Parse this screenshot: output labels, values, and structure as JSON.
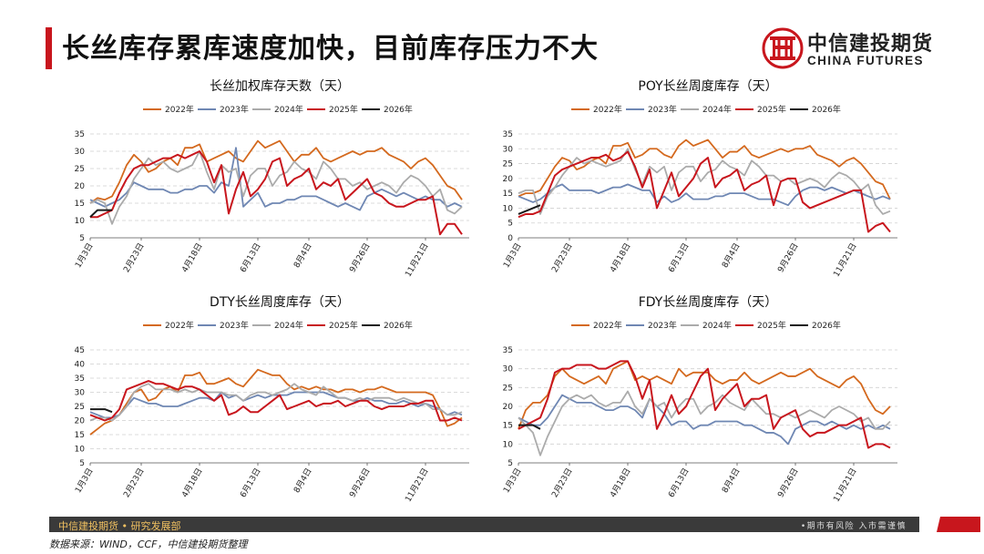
{
  "header": {
    "title": "长丝库存累库速度加快，目前库存压力不大",
    "accent_color": "#c8161d"
  },
  "logo": {
    "cn": "中信建投期货",
    "en": "CHINA FUTURES",
    "emblem_icon": "china-futures-emblem-icon",
    "emblem_color": "#c8161d"
  },
  "footer": {
    "left": "中信建投期货 • 研究发展部",
    "right": "•期市有风险  入市需谨慎",
    "source": "数据来源：WIND，CCF，中信建投期货整理"
  },
  "chart_data": [
    {
      "type": "line",
      "title": "长丝加权库存天数（天）",
      "ylim": [
        5,
        35
      ],
      "ytick_step": 5,
      "x_range": [
        0,
        52
      ],
      "x_tick_labels": [
        "1月3日",
        "2月23日",
        "4月18日",
        "6月13日",
        "8月4日",
        "9月26日",
        "11月21日"
      ],
      "x_tick_positions": [
        0,
        7,
        15,
        23,
        30,
        38,
        46
      ],
      "series": [
        {
          "name": "2022年",
          "color": "#d4691e",
          "values": [
            15,
            16.5,
            16,
            17,
            21,
            26,
            29,
            27,
            24,
            25,
            27,
            28,
            26,
            31,
            31,
            32,
            27,
            28,
            29,
            30,
            28,
            27,
            30,
            33,
            31,
            32,
            33,
            30,
            27,
            29,
            29,
            31,
            28,
            27,
            28,
            29,
            30,
            29,
            30,
            30,
            31,
            29,
            28,
            27,
            25,
            27,
            28,
            26,
            23,
            20,
            19,
            16
          ]
        },
        {
          "name": "2023年",
          "color": "#6f87b3",
          "values": [
            16,
            15,
            14,
            15,
            16,
            18,
            21,
            20,
            19,
            19,
            19,
            18,
            18,
            19,
            19,
            20,
            20,
            18,
            21,
            20,
            31,
            14,
            16,
            18,
            14,
            15,
            15,
            16,
            16,
            17,
            17,
            17,
            16,
            15,
            14,
            15,
            14,
            13,
            17,
            18,
            19,
            18,
            17,
            18,
            17,
            16,
            17,
            16,
            16,
            14,
            15,
            14
          ]
        },
        {
          "name": "2024年",
          "color": "#ababab",
          "values": [
            15,
            16,
            15,
            9,
            14,
            17,
            22,
            25,
            28,
            26,
            27,
            25,
            24,
            25,
            26,
            30,
            24,
            19,
            26,
            24,
            25,
            17,
            23,
            25,
            25,
            20,
            23,
            24,
            27,
            25,
            24,
            22,
            27,
            25,
            22,
            22,
            20,
            21,
            19,
            20,
            21,
            20,
            18,
            21,
            23,
            22,
            20,
            17,
            19,
            13,
            12,
            14
          ]
        },
        {
          "name": "2025年",
          "color": "#c8161d",
          "values": [
            11,
            11,
            12,
            13,
            18,
            22,
            25,
            26,
            26,
            27,
            28,
            28,
            29,
            28,
            29,
            30,
            27,
            21,
            26,
            12,
            19,
            24,
            17,
            19,
            22,
            27,
            28,
            20,
            22,
            23,
            25,
            19,
            21,
            20,
            22,
            16,
            18,
            20,
            22,
            18,
            17,
            15,
            14,
            14,
            15,
            16,
            16,
            17,
            6,
            9,
            9,
            6
          ]
        },
        {
          "name": "2026年",
          "color": "#1a1a1a",
          "values": [
            11,
            13,
            13,
            13
          ]
        }
      ]
    },
    {
      "type": "line",
      "title": "POY长丝周度库存（天）",
      "ylim": [
        0,
        35
      ],
      "ytick_step": 5,
      "x_range": [
        0,
        52
      ],
      "x_tick_labels": [
        "1月3日",
        "2月23日",
        "4月18日",
        "6月13日",
        "8月4日",
        "9月26日",
        "11月21日"
      ],
      "x_tick_positions": [
        0,
        7,
        15,
        23,
        30,
        38,
        46
      ],
      "series": [
        {
          "name": "2022年",
          "color": "#d4691e",
          "values": [
            14,
            15,
            15,
            16,
            20,
            24,
            27,
            26,
            23,
            24,
            26,
            27,
            25,
            31,
            31,
            32,
            27,
            28,
            30,
            30,
            28,
            27,
            31,
            33,
            31,
            32,
            33,
            30,
            27,
            29,
            29,
            31,
            28,
            27,
            28,
            29,
            30,
            29,
            30,
            30,
            31,
            28,
            27,
            26,
            24,
            26,
            27,
            25,
            22,
            19,
            18,
            13
          ]
        },
        {
          "name": "2023年",
          "color": "#6f87b3",
          "values": [
            14,
            13,
            12,
            13,
            15,
            17,
            18,
            16,
            16,
            16,
            16,
            15,
            16,
            17,
            17,
            18,
            17,
            16,
            16,
            12,
            14,
            12,
            13,
            15,
            13,
            13,
            13,
            14,
            14,
            15,
            15,
            15,
            14,
            13,
            13,
            13,
            12,
            11,
            14,
            16,
            17,
            17,
            16,
            17,
            16,
            15,
            16,
            15,
            14,
            13,
            14,
            13
          ]
        },
        {
          "name": "2024年",
          "color": "#ababab",
          "values": [
            15,
            16,
            16,
            8,
            14,
            17,
            21,
            24,
            27,
            25,
            26,
            25,
            24,
            25,
            26,
            30,
            23,
            18,
            24,
            22,
            24,
            16,
            22,
            24,
            24,
            19,
            22,
            23,
            26,
            24,
            23,
            21,
            26,
            24,
            21,
            21,
            19,
            20,
            18,
            19,
            20,
            19,
            17,
            20,
            22,
            21,
            19,
            16,
            18,
            11,
            8,
            9
          ]
        },
        {
          "name": "2025年",
          "color": "#c8161d",
          "values": [
            7,
            8,
            8,
            9,
            15,
            21,
            23,
            24,
            25,
            26,
            27,
            27,
            28,
            26,
            27,
            29,
            24,
            17,
            23,
            10,
            16,
            22,
            14,
            17,
            20,
            25,
            27,
            17,
            20,
            21,
            23,
            16,
            18,
            19,
            21,
            11,
            19,
            20,
            20,
            12,
            10,
            11,
            12,
            13,
            14,
            15,
            16,
            16,
            2,
            4,
            5,
            2
          ]
        },
        {
          "name": "2026年",
          "color": "#1a1a1a",
          "values": [
            8,
            9,
            10,
            11
          ]
        }
      ]
    },
    {
      "type": "line",
      "title": "DTY长丝周度库存（天）",
      "ylim": [
        5,
        45
      ],
      "ytick_step": 5,
      "x_range": [
        0,
        52
      ],
      "x_tick_labels": [
        "1月3日",
        "2月23日",
        "4月18日",
        "6月13日",
        "8月4日",
        "9月26日",
        "11月21日"
      ],
      "x_tick_positions": [
        0,
        7,
        15,
        23,
        30,
        38,
        46
      ],
      "series": [
        {
          "name": "2022年",
          "color": "#d4691e",
          "values": [
            15,
            17,
            19,
            20,
            22,
            26,
            30,
            31,
            27,
            28,
            31,
            32,
            30,
            36,
            36,
            37,
            33,
            33,
            34,
            35,
            33,
            32,
            35,
            38,
            37,
            36,
            36,
            33,
            31,
            32,
            31,
            32,
            31,
            31,
            30,
            31,
            31,
            30,
            31,
            31,
            32,
            31,
            30,
            30,
            30,
            30,
            30,
            29,
            24,
            18,
            19,
            21
          ]
        },
        {
          "name": "2023年",
          "color": "#6f87b3",
          "values": [
            23,
            22,
            21,
            21,
            22,
            25,
            28,
            27,
            26,
            26,
            25,
            25,
            25,
            26,
            27,
            28,
            28,
            27,
            30,
            28,
            29,
            27,
            28,
            29,
            28,
            29,
            29,
            29,
            30,
            30,
            30,
            30,
            30,
            29,
            28,
            28,
            27,
            27,
            28,
            27,
            27,
            26,
            26,
            27,
            26,
            25,
            26,
            25,
            24,
            22,
            23,
            22
          ]
        },
        {
          "name": "2024年",
          "color": "#ababab",
          "values": [
            20,
            21,
            21,
            20,
            22,
            25,
            30,
            32,
            33,
            31,
            31,
            31,
            30,
            31,
            30,
            31,
            30,
            30,
            30,
            29,
            29,
            27,
            29,
            30,
            30,
            29,
            30,
            31,
            33,
            31,
            30,
            29,
            32,
            30,
            28,
            28,
            27,
            28,
            27,
            28,
            28,
            28,
            27,
            28,
            27,
            26,
            26,
            24,
            24,
            22,
            22,
            23
          ]
        },
        {
          "name": "2025年",
          "color": "#c8161d",
          "values": [
            22,
            21,
            20,
            21,
            24,
            31,
            32,
            33,
            34,
            33,
            33,
            32,
            31,
            32,
            32,
            31,
            29,
            27,
            29,
            22,
            23,
            25,
            23,
            23,
            25,
            27,
            29,
            24,
            25,
            26,
            27,
            25,
            26,
            26,
            27,
            25,
            26,
            27,
            27,
            25,
            24,
            25,
            25,
            25,
            26,
            26,
            27,
            27,
            20,
            20,
            21,
            20
          ]
        },
        {
          "name": "2026年",
          "color": "#1a1a1a",
          "values": [
            24,
            24,
            24,
            23
          ]
        }
      ]
    },
    {
      "type": "line",
      "title": "FDY长丝周度库存（天）",
      "ylim": [
        5,
        35
      ],
      "ytick_step": 5,
      "x_range": [
        0,
        52
      ],
      "x_tick_labels": [
        "1月3日",
        "2月23日",
        "4月18日",
        "6月13日",
        "8月4日",
        "9月26日",
        "11月21日"
      ],
      "x_tick_positions": [
        0,
        7,
        15,
        23,
        30,
        38,
        46
      ],
      "series": [
        {
          "name": "2022年",
          "color": "#d4691e",
          "values": [
            14,
            19,
            21,
            21,
            23,
            28,
            30,
            28,
            27,
            26,
            27,
            28,
            26,
            30,
            31,
            32,
            27,
            28,
            27,
            28,
            27,
            26,
            30,
            28,
            29,
            29,
            29,
            27,
            26,
            27,
            27,
            29,
            27,
            26,
            27,
            28,
            29,
            28,
            28,
            29,
            30,
            28,
            27,
            26,
            25,
            27,
            28,
            26,
            22,
            19,
            18,
            20
          ]
        },
        {
          "name": "2023年",
          "color": "#6f87b3",
          "values": [
            17,
            16,
            15,
            15,
            17,
            20,
            23,
            22,
            21,
            21,
            21,
            20,
            19,
            19,
            20,
            20,
            19,
            17,
            22,
            20,
            18,
            15,
            16,
            16,
            14,
            15,
            15,
            16,
            16,
            16,
            16,
            15,
            15,
            14,
            13,
            13,
            12,
            10,
            14,
            15,
            16,
            16,
            15,
            16,
            15,
            14,
            15,
            14,
            15,
            14,
            15,
            14
          ]
        },
        {
          "name": "2024年",
          "color": "#ababab",
          "values": [
            17,
            15,
            13,
            7,
            12,
            16,
            20,
            22,
            23,
            22,
            23,
            21,
            20,
            21,
            21,
            24,
            20,
            18,
            22,
            20,
            21,
            17,
            20,
            22,
            22,
            18,
            20,
            21,
            23,
            21,
            20,
            19,
            22,
            20,
            18,
            18,
            17,
            18,
            17,
            18,
            19,
            18,
            17,
            19,
            20,
            19,
            18,
            16,
            17,
            14,
            14,
            16
          ]
        },
        {
          "name": "2025年",
          "color": "#c8161d",
          "values": [
            14,
            15,
            16,
            17,
            22,
            29,
            30,
            30,
            31,
            31,
            31,
            30,
            30,
            31,
            32,
            32,
            28,
            22,
            27,
            14,
            18,
            23,
            18,
            20,
            24,
            28,
            30,
            19,
            22,
            24,
            26,
            20,
            22,
            22,
            23,
            14,
            17,
            18,
            19,
            14,
            12,
            13,
            13,
            14,
            15,
            15,
            16,
            17,
            9,
            10,
            10,
            9
          ]
        },
        {
          "name": "2026年",
          "color": "#1a1a1a",
          "values": [
            15,
            15,
            15,
            14
          ]
        }
      ]
    }
  ]
}
